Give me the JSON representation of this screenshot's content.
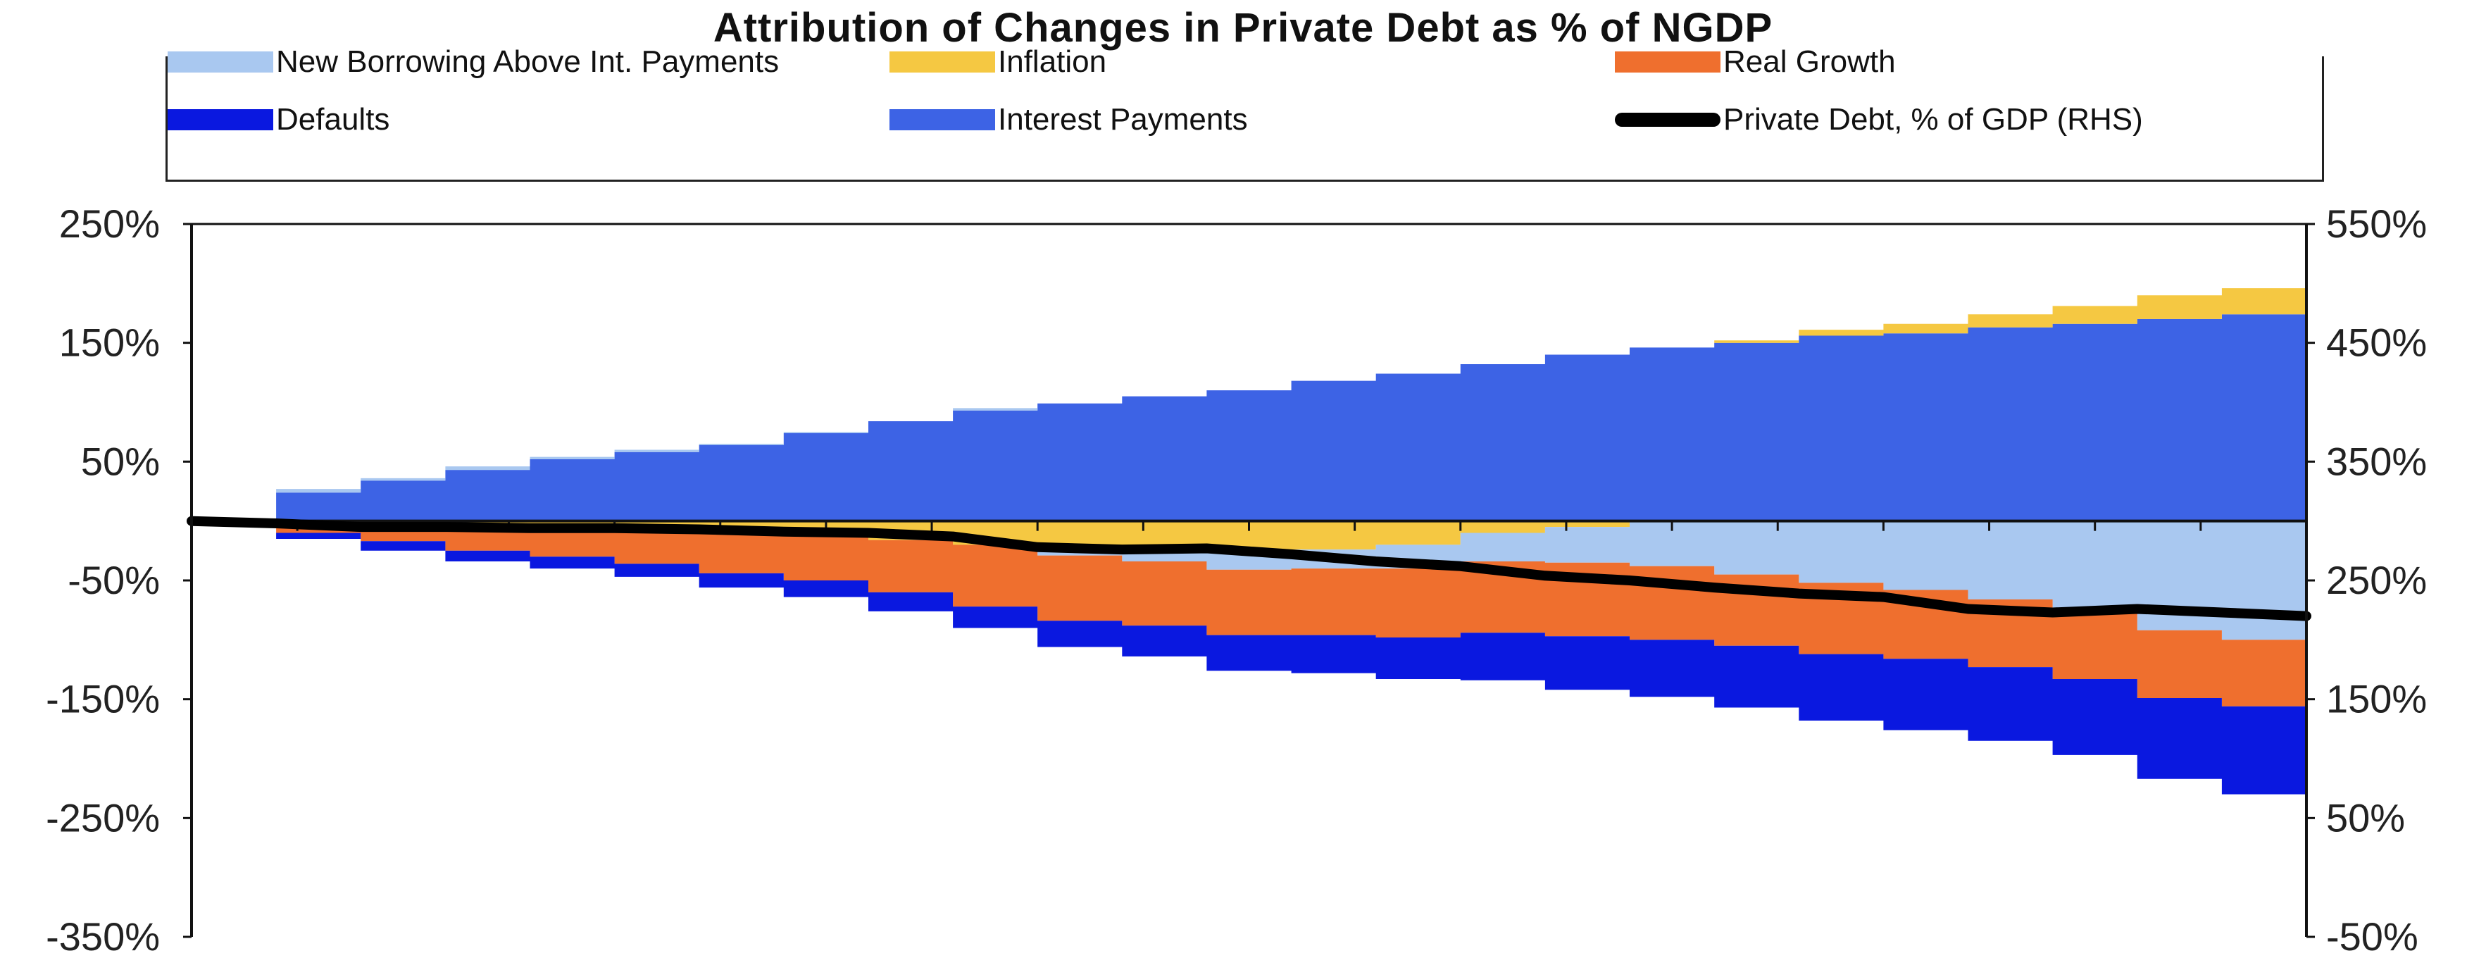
{
  "colors": {
    "new_borrowing": "#a9c8f0",
    "inflation": "#f5c842",
    "real_growth": "#ef6f2e",
    "defaults": "#0a18e0",
    "interest_payments": "#3d63e5",
    "private_debt": "#000000"
  },
  "chart_data": {
    "type": "area",
    "title": "Attribution of Changes in Private Debt as % of NGDP",
    "xlabel": "",
    "ylabel": "",
    "grid": false,
    "legend_position": "top",
    "ylim_left": [
      -350,
      250
    ],
    "ylim_right": [
      -50,
      550
    ],
    "yticks_left": [
      "250%",
      "150%",
      "50%",
      "-50%",
      "-150%",
      "-250%",
      "-350%"
    ],
    "yticks_right": [
      "550%",
      "450%",
      "350%",
      "250%",
      "150%",
      "50%",
      "-50%"
    ],
    "x_steps": [
      0,
      8,
      16,
      24,
      32,
      40,
      48,
      56,
      64,
      72,
      80,
      88,
      96,
      104,
      112,
      120,
      128,
      136,
      144,
      152,
      160,
      168,
      176,
      184,
      192,
      200
    ],
    "series": [
      {
        "name": "New Borrowing Above Int. Payments",
        "color_key": "new_borrowing",
        "values": [
          0,
          3,
          2,
          3,
          2,
          2,
          1,
          1,
          0,
          2,
          -5,
          -8,
          -15,
          -16,
          -20,
          -24,
          -30,
          -38,
          -45,
          -52,
          -58,
          -66,
          -78,
          -92,
          -100,
          -108
        ]
      },
      {
        "name": "Inflation",
        "color_key": "inflation",
        "values": [
          0,
          -2,
          -3,
          -5,
          -6,
          -8,
          -10,
          -12,
          -16,
          -20,
          -24,
          -26,
          -26,
          -24,
          -20,
          -10,
          -5,
          0,
          2,
          5,
          8,
          11,
          15,
          20,
          22,
          30
        ]
      },
      {
        "name": "Real Growth",
        "color_key": "real_growth",
        "values": [
          0,
          -8,
          -14,
          -20,
          -24,
          -28,
          -34,
          -38,
          -44,
          -52,
          -55,
          -54,
          -55,
          -56,
          -58,
          -60,
          -62,
          -62,
          -60,
          -60,
          -58,
          -57,
          -55,
          -57,
          -56,
          -60
        ]
      },
      {
        "name": "Defaults",
        "color_key": "defaults",
        "values": [
          0,
          -5,
          -8,
          -9,
          -10,
          -11,
          -12,
          -14,
          -16,
          -18,
          -22,
          -26,
          -30,
          -32,
          -35,
          -40,
          -45,
          -48,
          -52,
          -56,
          -60,
          -62,
          -64,
          -68,
          -74,
          -80
        ]
      },
      {
        "name": "Interest Payments",
        "color_key": "interest_payments",
        "values": [
          0,
          24,
          34,
          43,
          52,
          58,
          64,
          74,
          84,
          93,
          99,
          105,
          110,
          118,
          124,
          132,
          140,
          146,
          150,
          156,
          158,
          163,
          166,
          170,
          174,
          166
        ]
      },
      {
        "name": "Private Debt, % of GDP (RHS)",
        "color_key": "private_debt",
        "axis": "right",
        "values": [
          300,
          298,
          295,
          295,
          294,
          294,
          293,
          291,
          290,
          287,
          278,
          276,
          277,
          272,
          266,
          262,
          254,
          250,
          244,
          239,
          236,
          226,
          223,
          226,
          223,
          220
        ]
      }
    ]
  }
}
